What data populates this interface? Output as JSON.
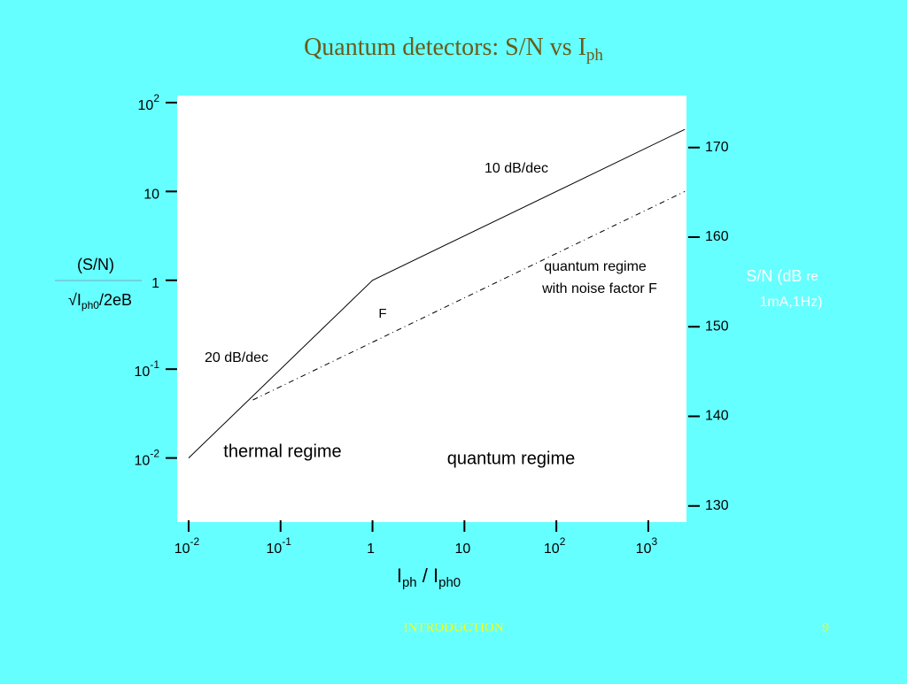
{
  "chart_data": {
    "type": "line",
    "title": "Quantum detectors: S/N vs I",
    "title_sub": "ph",
    "xlabel": [
      "I",
      "ph",
      " / I",
      "ph0"
    ],
    "ylabel_top": "(S/N)",
    "ylabel_bottom": [
      "√I",
      "ph0",
      "/2eB"
    ],
    "y2label": [
      "S/N (dB ",
      "re",
      "1mA,1Hz)"
    ],
    "xscale": "log",
    "yscale": "log",
    "xlim": [
      0.0075,
      2600
    ],
    "ylim": [
      0.0019,
      120
    ],
    "y2lim": [
      128.2,
      175.8
    ],
    "xticks": [
      {
        "value": 0.01,
        "label": "10",
        "exponent": "-2"
      },
      {
        "value": 0.1,
        "label": "10",
        "exponent": "-1"
      },
      1,
      10,
      {
        "value": 100,
        "label": "10",
        "exponent": "2"
      },
      {
        "value": 1000,
        "label": "10",
        "exponent": "3"
      }
    ],
    "yticks": [
      {
        "value": 100,
        "label": "10",
        "exponent": "2"
      },
      10,
      1,
      {
        "value": 0.1,
        "label": "10",
        "exponent": "-1"
      },
      {
        "value": 0.01,
        "label": "10",
        "exponent": "-2"
      }
    ],
    "y2ticks": [
      170,
      160,
      150,
      140,
      130
    ],
    "series": [
      {
        "x": [
          0.01,
          1,
          2500
        ],
        "values": [
          0.01,
          1,
          50
        ],
        "color": "#000000",
        "style": "solid"
      },
      {
        "x": [
          0.05,
          2500
        ],
        "values": [
          0.045,
          10
        ],
        "color": "#000000",
        "style": "dashdot"
      }
    ],
    "annotations": [
      "10 dB/dec",
      "20 dB/dec",
      "quantum regime",
      "with  noise factor F",
      "F",
      "thermal regime",
      "quantum  regime"
    ],
    "footer": "INTRODUCTION",
    "page_number": "9"
  }
}
